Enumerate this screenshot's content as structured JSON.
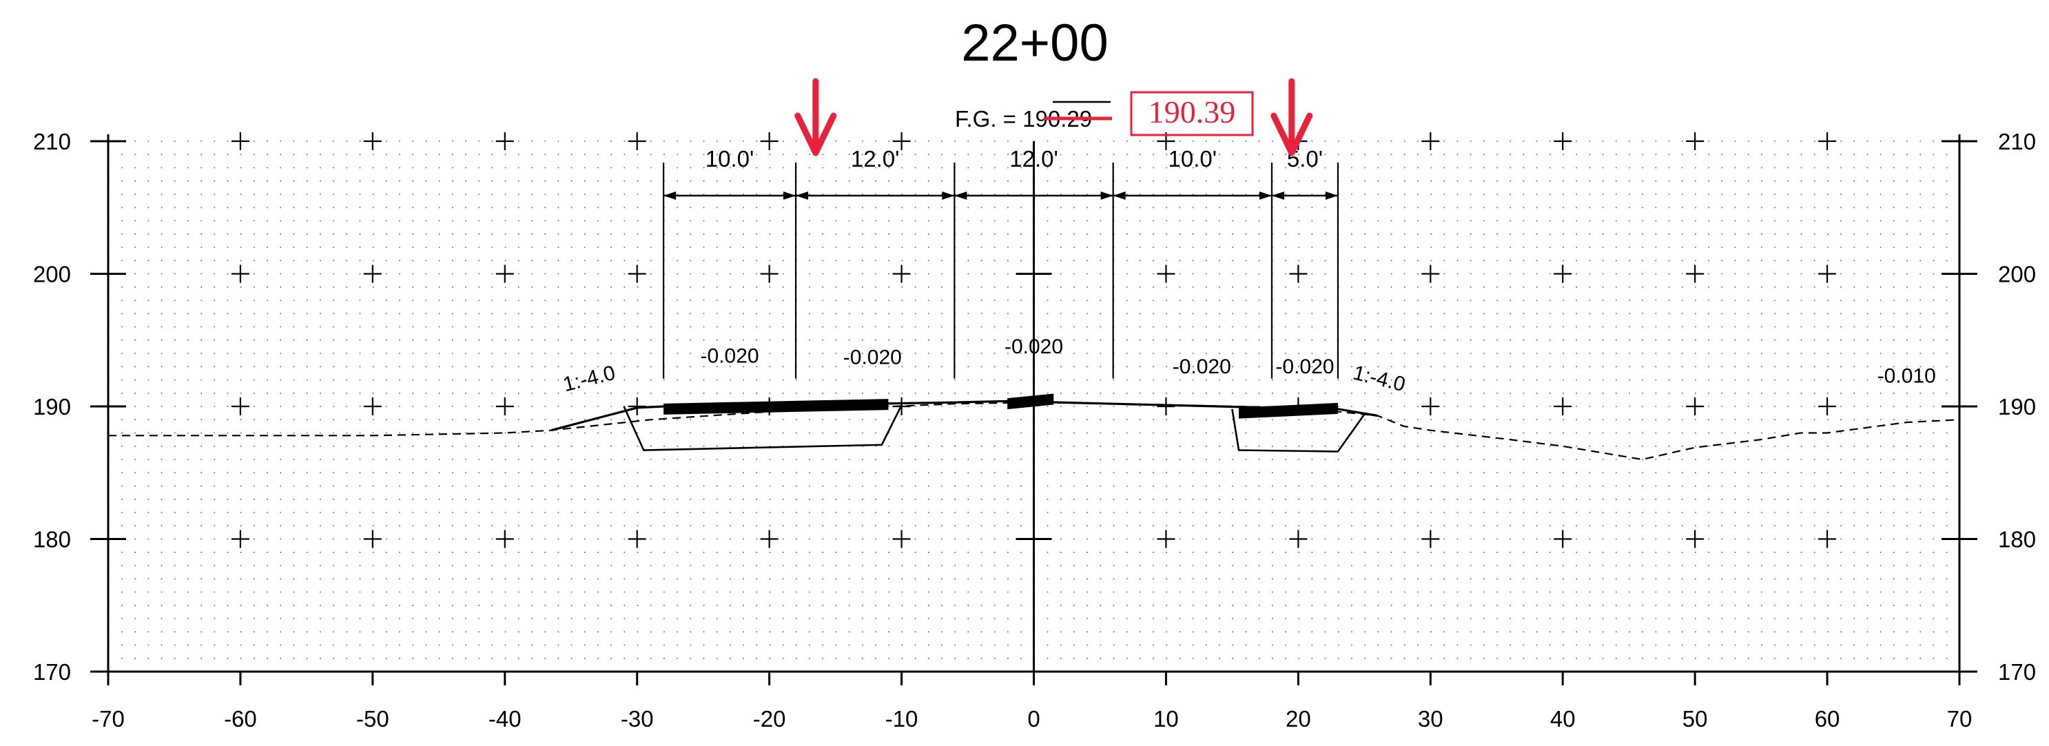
{
  "title": "22+00",
  "finished_grade": {
    "label": "F.G. = ",
    "original_value": "190.29",
    "corrected_value": "190.39"
  },
  "axes": {
    "x_ticks": [
      "-70",
      "-60",
      "-50",
      "-40",
      "-30",
      "-20",
      "-10",
      "0",
      "10",
      "20",
      "30",
      "40",
      "50",
      "60",
      "70"
    ],
    "y_ticks": [
      "210",
      "200",
      "190",
      "180",
      "170"
    ],
    "x_range": [
      -70,
      70
    ],
    "y_range": [
      170,
      210
    ]
  },
  "lane_widths": [
    {
      "text": "10.0'",
      "from": -28,
      "to": -18
    },
    {
      "text": "12.0'",
      "from": -18,
      "to": -6
    },
    {
      "text": "12.0'",
      "from": -6,
      "to": 6
    },
    {
      "text": "10.0'",
      "from": 6,
      "to": 18
    },
    {
      "text": "5.0'",
      "from": 18,
      "to": 23
    }
  ],
  "cross_slopes": [
    {
      "text": "-0.020",
      "x": -23,
      "y": 193.3
    },
    {
      "text": "-0.020",
      "x": -12.2,
      "y": 193.2
    },
    {
      "text": "-0.020",
      "x": 0,
      "y": 194.0
    },
    {
      "text": "-0.020",
      "x": 12.7,
      "y": 192.5
    },
    {
      "text": "-0.020",
      "x": 20.5,
      "y": 192.5
    },
    {
      "text": "-0.010",
      "x": 66,
      "y": 191.8
    }
  ],
  "side_slopes": [
    {
      "text": "1:-4.0",
      "x": -33.5,
      "y": 191.6
    },
    {
      "text": "1:-4.0",
      "x": 26,
      "y": 191.6
    }
  ],
  "existing_ground": [
    [
      -70,
      187.8
    ],
    [
      -60,
      187.8
    ],
    [
      -50,
      187.8
    ],
    [
      -40,
      188.0
    ],
    [
      -36.5,
      188.2
    ],
    [
      -29,
      189.0
    ],
    [
      -20,
      189.6
    ],
    [
      -6,
      190.2
    ],
    [
      0,
      190.3
    ],
    [
      6,
      190.2
    ],
    [
      20,
      189.9
    ],
    [
      26,
      189.3
    ],
    [
      28,
      188.5
    ],
    [
      30,
      188.2
    ],
    [
      36,
      187.5
    ],
    [
      40,
      187.0
    ],
    [
      46,
      186.0
    ],
    [
      50,
      186.9
    ],
    [
      55,
      187.5
    ],
    [
      58,
      188.0
    ],
    [
      60,
      188.0
    ],
    [
      66,
      188.8
    ],
    [
      70,
      189.0
    ]
  ],
  "finished_grade_line": [
    [
      -36.5,
      188.2
    ],
    [
      -30,
      189.9
    ],
    [
      -28,
      190.0
    ],
    [
      -18,
      190.1
    ],
    [
      -6,
      190.3
    ],
    [
      -2,
      190.4
    ],
    [
      0,
      190.35
    ],
    [
      6,
      190.2
    ],
    [
      18,
      189.9
    ],
    [
      23,
      189.8
    ],
    [
      26,
      189.3
    ]
  ],
  "left_trench": [
    [
      -31,
      190.0
    ],
    [
      -29.5,
      186.7
    ],
    [
      -11.5,
      187.1
    ],
    [
      -10,
      190.1
    ]
  ],
  "right_trench": [
    [
      15,
      189.8
    ],
    [
      15.5,
      186.7
    ],
    [
      23,
      186.6
    ],
    [
      25,
      189.4
    ]
  ],
  "pavement_bars": [
    {
      "from": -28,
      "to": -11,
      "y": 189.8
    },
    {
      "from": -2,
      "to": 1.5,
      "y": 190.2
    },
    {
      "from": 15.5,
      "to": 23,
      "y": 189.5
    }
  ],
  "markup_color": "#e8223a",
  "arrows_at_x": [
    -16.5,
    19.5
  ]
}
